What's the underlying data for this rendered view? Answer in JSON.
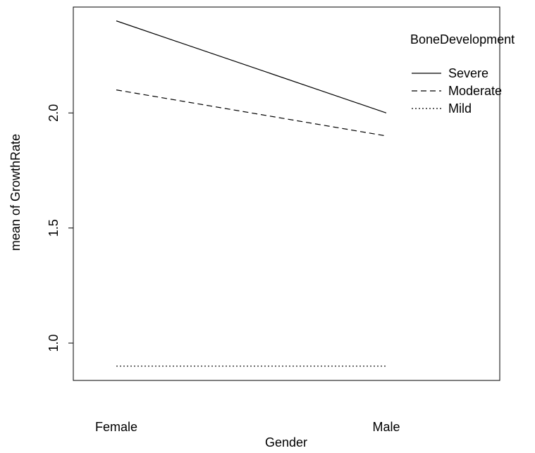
{
  "chart_data": {
    "type": "line",
    "title": "",
    "xlabel": "Gender",
    "ylabel": "mean of  GrowthRate",
    "categories": [
      "Female",
      "Male"
    ],
    "ylim": [
      0.84,
      2.46
    ],
    "yticks": [
      "1.0",
      "1.5",
      "2.0"
    ],
    "ytick_values": [
      1.0,
      1.5,
      2.0
    ],
    "legend": {
      "title": "BoneDevelopment",
      "position": "top-right",
      "entries": [
        {
          "label": "Severe",
          "style": "solid"
        },
        {
          "label": "Moderate",
          "style": "dashed"
        },
        {
          "label": "Mild",
          "style": "dotted"
        }
      ]
    },
    "series": [
      {
        "name": "Severe",
        "style": "solid",
        "values": [
          2.4,
          2.0
        ]
      },
      {
        "name": "Moderate",
        "style": "dashed",
        "values": [
          2.1,
          1.9
        ]
      },
      {
        "name": "Mild",
        "style": "dotted",
        "values": [
          0.9,
          0.9
        ]
      }
    ],
    "colors": {
      "line": "#000000",
      "background": "#ffffff",
      "frame": "#000000"
    },
    "grid": false
  }
}
